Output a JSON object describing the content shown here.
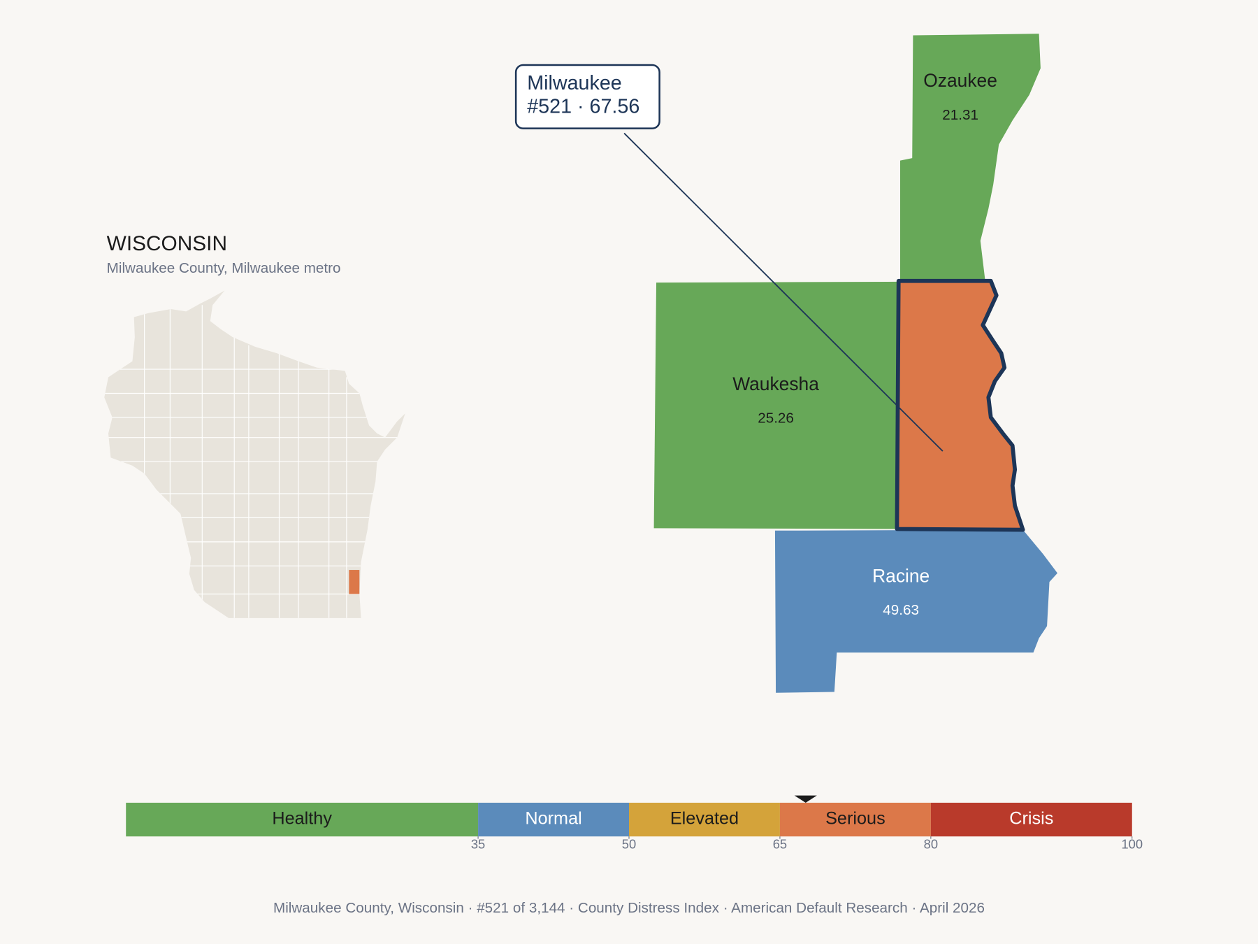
{
  "state": {
    "title": "WISCONSIN",
    "subtitle": "Milwaukee County, Milwaukee metro"
  },
  "counties": [
    {
      "name": "Ozaukee",
      "value": 21.31
    },
    {
      "name": "Waukesha",
      "value": 25.26
    },
    {
      "name": "Racine",
      "value": 49.63
    },
    {
      "name": "Milwaukee",
      "value": 67.56,
      "highlight": true
    }
  ],
  "callout": {
    "lines": [
      "Milwaukee",
      "#521 · 67.56"
    ]
  },
  "scale": {
    "range": [
      0,
      100
    ],
    "ticks": [
      35,
      50,
      65,
      80,
      100
    ],
    "bands": [
      {
        "label": "Healthy",
        "color": "#67a858"
      },
      {
        "label": "Normal",
        "color": "#5b8bbb"
      },
      {
        "label": "Elevated",
        "color": "#d4a33a"
      },
      {
        "label": "Serious",
        "color": "#dc7849"
      },
      {
        "label": "Crisis",
        "color": "#b93a2b"
      }
    ]
  },
  "footer": "Milwaukee County, Wisconsin  ·  #521 of 3,144  ·  County Distress Index  ·  American Default Research  ·  April 2026"
}
